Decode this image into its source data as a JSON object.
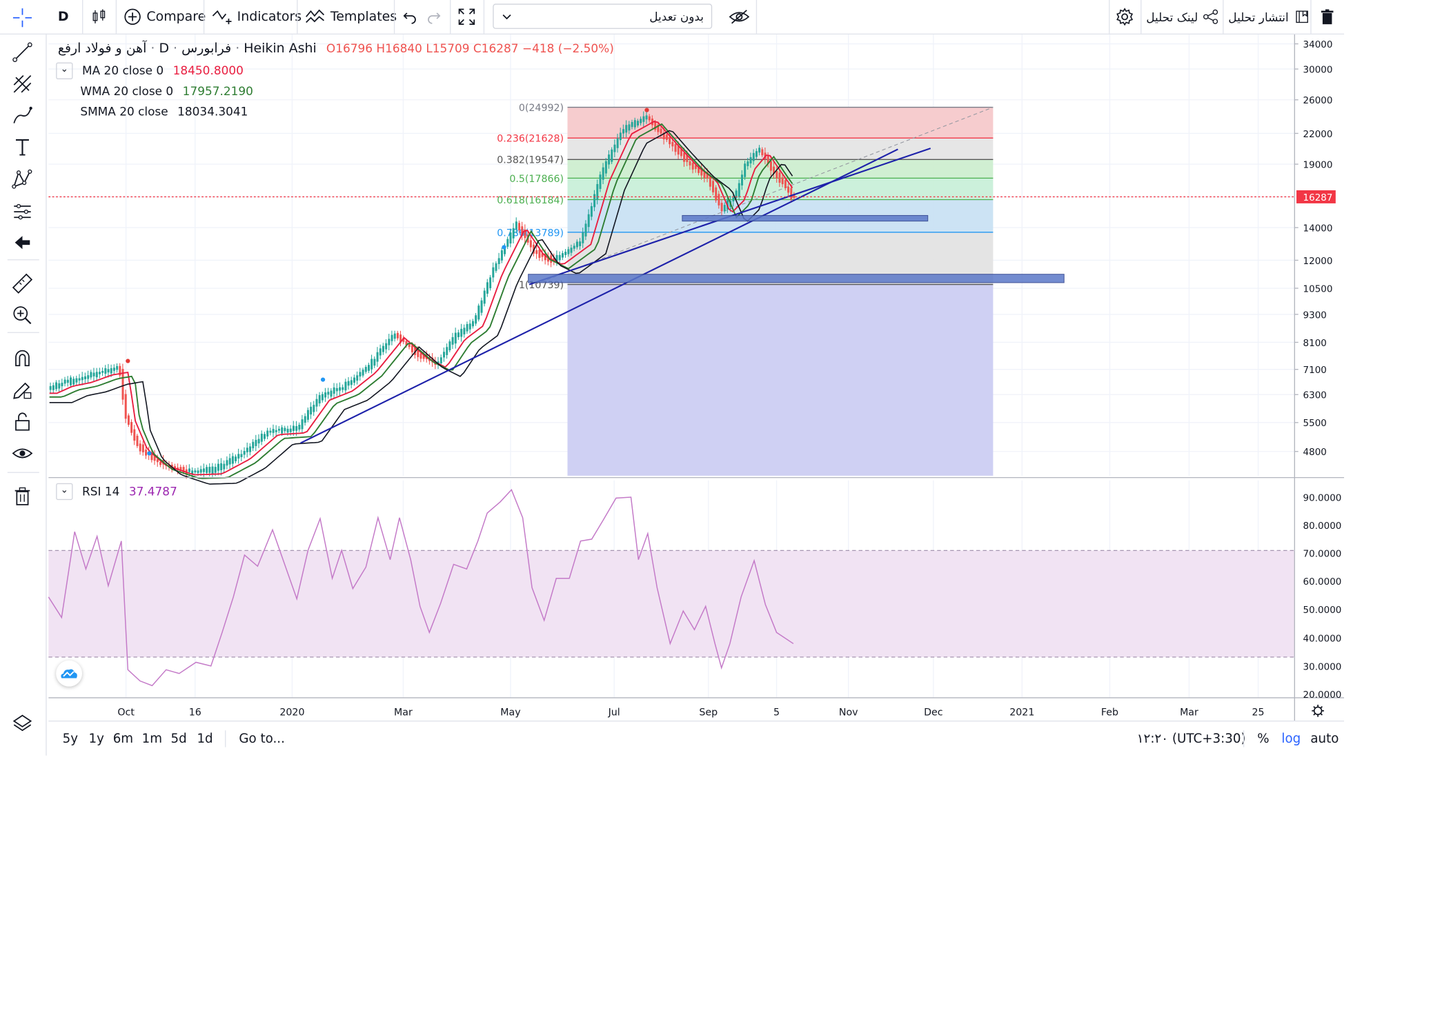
{
  "toolbar": {
    "interval": "D",
    "compare_label": "Compare",
    "indicators_label": "Indicators",
    "templates_label": "Templates",
    "adjust_select_value": "بدون تعدیل",
    "link_label": "لینک تحلیل",
    "publish_label": "انتشار تحلیل"
  },
  "legend": {
    "symbol": "آهن و فولاد ارفع",
    "exchange": "فرابورس",
    "interval": "D",
    "chart_style": "Heikin Ashi",
    "open": "O16796",
    "high": "H16840",
    "low": "L15709",
    "close": "C16287",
    "change": "−418 (−2.50%)",
    "studies": [
      {
        "name": "MA 20 close 0",
        "value": "18450.8000",
        "color": "#e91e40"
      },
      {
        "name": "WMA 20 close 0",
        "value": "17957.2190",
        "color": "#2e7d32"
      },
      {
        "name": "SMMA 20 close",
        "value": "18034.3041",
        "color": "#131722"
      }
    ]
  },
  "price_axis": {
    "ticks": [
      "34000",
      "30000",
      "26000",
      "22000",
      "19000",
      "16287",
      "14000",
      "12000",
      "10500",
      "9300",
      "8100",
      "7100",
      "6300",
      "5500",
      "4800"
    ],
    "last_price": "16287",
    "last_price_color": "#f23645",
    "scale": "log"
  },
  "fib": {
    "levels": [
      {
        "label": "0(24992)",
        "color": "#787b86"
      },
      {
        "label": "0.236(21628)",
        "color": "#f23645"
      },
      {
        "label": "0.382(19547)",
        "color": "#555555"
      },
      {
        "label": "0.5(17866)",
        "color": "#4caf50"
      },
      {
        "label": "0.618(16184)",
        "color": "#4caf50"
      },
      {
        "label": "0.786(13789)",
        "color": "#2196f3"
      },
      {
        "label": "1(10739)",
        "color": "#555555"
      }
    ]
  },
  "rsi": {
    "name": "RSI 14",
    "value": "37.4787",
    "color": "#9c27b0",
    "ticks": [
      "90.0000",
      "80.0000",
      "70.0000",
      "60.0000",
      "50.0000",
      "40.0000",
      "30.0000",
      "20.0000"
    ],
    "overbought": 70,
    "oversold": 30
  },
  "time_axis": {
    "labels": [
      "Oct",
      "16",
      "2020",
      "Mar",
      "May",
      "Jul",
      "Sep",
      "5",
      "Nov",
      "Dec",
      "2021",
      "Feb",
      "Mar",
      "25"
    ]
  },
  "bottom": {
    "ranges": [
      "5y",
      "1y",
      "6m",
      "1m",
      "5d",
      "1d"
    ],
    "goto": "Go to...",
    "clock": "۱۲:۲۰ (UTC+3:30)",
    "percent": "%",
    "log": "log",
    "auto": "auto"
  },
  "colors": {
    "up": "#26a69a",
    "down": "#ef5350",
    "ma": "#e91e40",
    "wma": "#2e7d32",
    "smma": "#131722",
    "trendline": "#1e22aa",
    "accent": "#2962ff"
  }
}
